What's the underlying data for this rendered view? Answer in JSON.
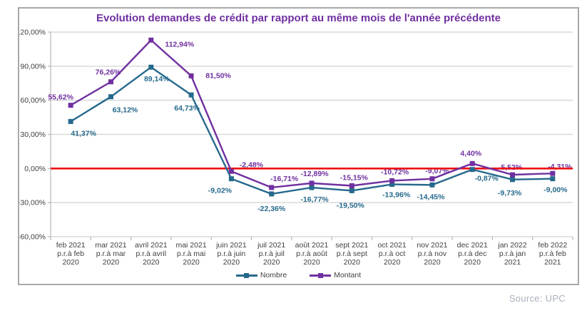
{
  "chart_data": {
    "type": "line",
    "title": "Evolution demandes de crédit par rapport au même mois de l'année précédente",
    "title_color": "#7030A0",
    "categories": [
      [
        "feb 2021",
        "p.r.à feb",
        "2020"
      ],
      [
        "mar 2021",
        "p.r.à mar",
        "2020"
      ],
      [
        "avril 2021",
        "p.r.à avril",
        "2020"
      ],
      [
        "mai 2021",
        "p.r.à mai",
        "2020"
      ],
      [
        "juin 2021",
        "p.r.à juin",
        "2020"
      ],
      [
        "juil 2021",
        "p.r.à juil",
        "2020"
      ],
      [
        "août 2021",
        "p.r.à août",
        "2020"
      ],
      [
        "sept 2021",
        "p.r.à sept",
        "2020"
      ],
      [
        "oct 2021",
        "p.r.à oct",
        "2020"
      ],
      [
        "nov 2021",
        "p.r.à nov",
        "2020"
      ],
      [
        "dec 2021",
        "p.r.à dec",
        "2020"
      ],
      [
        "jan 2022",
        "p.r.à jan",
        "2021"
      ],
      [
        "feb 2022",
        "p.r.à feb",
        "2021"
      ]
    ],
    "series": [
      {
        "name": "Nombre",
        "color": "#26698C",
        "values": [
          41.37,
          63.12,
          89.14,
          64.73,
          -9.02,
          -22.36,
          -16.77,
          -19.5,
          -13.96,
          -14.45,
          -0.87,
          -9.73,
          -9.0
        ],
        "labels": [
          "41,37%",
          "63,12%",
          "89,14%",
          "64,73%",
          "-9,02%",
          "-22,36%",
          "-16,77%",
          "-19,50%",
          "-13,96%",
          "-14,45%",
          "-0,87%",
          "-9,73%",
          "-9,00%"
        ],
        "label_offsets": [
          [
            18,
            20
          ],
          [
            20,
            22
          ],
          [
            8,
            20
          ],
          [
            -6,
            22
          ],
          [
            -16,
            20
          ],
          [
            0,
            24
          ],
          [
            4,
            20
          ],
          [
            -2,
            24
          ],
          [
            6,
            18
          ],
          [
            -2,
            20
          ],
          [
            20,
            16
          ],
          [
            -4,
            22
          ],
          [
            4,
            19
          ]
        ]
      },
      {
        "name": "Montant",
        "color": "#7030A0",
        "values": [
          55.62,
          76.26,
          112.94,
          81.5,
          -2.48,
          -16.71,
          -12.89,
          -15.15,
          -10.72,
          -9.07,
          4.4,
          -5.52,
          -4.31
        ],
        "labels": [
          "55,62%",
          "76,26%",
          "112,94%",
          "81,50%",
          "-2,48%",
          "-16,71%",
          "-12,89%",
          "-15,15%",
          "-10,72%",
          "-9,07%",
          "4,40%",
          "-5,52%",
          "-4,31%"
        ],
        "label_offsets": [
          [
            -14,
            -8
          ],
          [
            -4,
            -10
          ],
          [
            40,
            9
          ],
          [
            38,
            3
          ],
          [
            28,
            -6
          ],
          [
            18,
            -9
          ],
          [
            4,
            -10
          ],
          [
            3,
            -8
          ],
          [
            4,
            -9
          ],
          [
            7,
            -8
          ],
          [
            -2,
            -11
          ],
          [
            -3,
            -7
          ],
          [
            10,
            -6
          ]
        ]
      }
    ],
    "ylim": [
      -60,
      120
    ],
    "y_tick_values": [
      120,
      90,
      60,
      30,
      0,
      -30,
      -60
    ],
    "y_tick_labels": [
      "120,00%",
      "90,00%",
      "60,00%",
      "30,00%",
      "0,00%",
      "-30,00%",
      "-60,00%"
    ],
    "zero_line_color": "#EE1111",
    "grid_color": "#D9D9D9",
    "axis_color": "#B7B7B7",
    "tick_text_color": "#404040",
    "grid": true,
    "legend_position": "bottom",
    "source": "Source: UPC"
  }
}
